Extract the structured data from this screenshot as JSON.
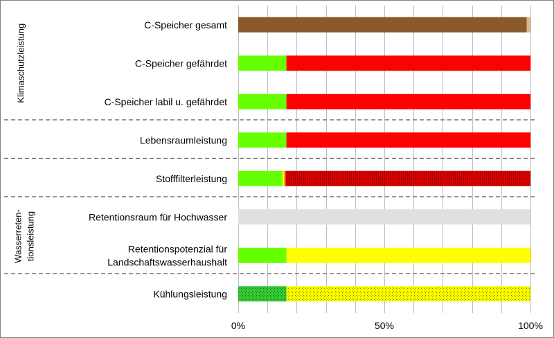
{
  "chart_data": {
    "type": "bar",
    "orientation": "horizontal",
    "stacked": true,
    "xlim": [
      0,
      100
    ],
    "x_ticks": [
      "0%",
      "50%",
      "100%"
    ],
    "grid": true,
    "rows": [
      {
        "label": [
          "C-Speicher gesamt"
        ],
        "segments": [
          {
            "value": 98.7,
            "color": "#8B5A2B",
            "pattern": "solid"
          },
          {
            "value": 1.3,
            "color": "#D9B88C",
            "pattern": "solid"
          }
        ]
      },
      {
        "label": [
          "C-Speicher gefährdet"
        ],
        "segments": [
          {
            "value": 16.5,
            "color": "#66FF00",
            "pattern": "solid"
          },
          {
            "value": 83.5,
            "color": "#FF0000",
            "pattern": "solid"
          }
        ]
      },
      {
        "label": [
          "C-Speicher labil u. gefährdet"
        ],
        "segments": [
          {
            "value": 16.5,
            "color": "#66FF00",
            "pattern": "solid"
          },
          {
            "value": 83.5,
            "color": "#FF0000",
            "pattern": "solid"
          }
        ]
      },
      {
        "label": [
          "Lebensraumleistung"
        ],
        "segments": [
          {
            "value": 16.5,
            "color": "#66FF00",
            "pattern": "solid"
          },
          {
            "value": 83.5,
            "color": "#FF0000",
            "pattern": "solid"
          }
        ]
      },
      {
        "label": [
          "Stofffilterleistung"
        ],
        "segments": [
          {
            "value": 15.2,
            "color": "#66FF00",
            "pattern": "solid"
          },
          {
            "value": 0.5,
            "color": "#FFFF00",
            "pattern": "solid"
          },
          {
            "value": 0.5,
            "color": "#FF8C00",
            "pattern": "solid"
          },
          {
            "value": 83.8,
            "color": "#E00000",
            "pattern": "vstripes"
          }
        ]
      },
      {
        "label": [
          "Retentionsraum für Hochwasser"
        ],
        "segments": [
          {
            "value": 100,
            "color": "#E0E0E0",
            "pattern": "solid"
          }
        ]
      },
      {
        "label": [
          "Retentionspotenzial für",
          "Landschaftswasserhaushalt"
        ],
        "segments": [
          {
            "value": 16.5,
            "color": "#66FF00",
            "pattern": "solid"
          },
          {
            "value": 83.5,
            "color": "#FFFF00",
            "pattern": "solid"
          }
        ]
      },
      {
        "label": [
          "Kühlungsleistung"
        ],
        "segments": [
          {
            "value": 16.5,
            "color": "#33CC33",
            "pattern": "dots"
          },
          {
            "value": 83.5,
            "color": "#FFFF00",
            "pattern": "dots"
          }
        ]
      }
    ],
    "groups": [
      {
        "label": [
          "Klimaschutzleistung"
        ],
        "rows": [
          0,
          1,
          2
        ]
      },
      {
        "label": [
          "Wasserreten-",
          "tionsleistung"
        ],
        "rows": [
          5,
          6
        ]
      }
    ]
  }
}
